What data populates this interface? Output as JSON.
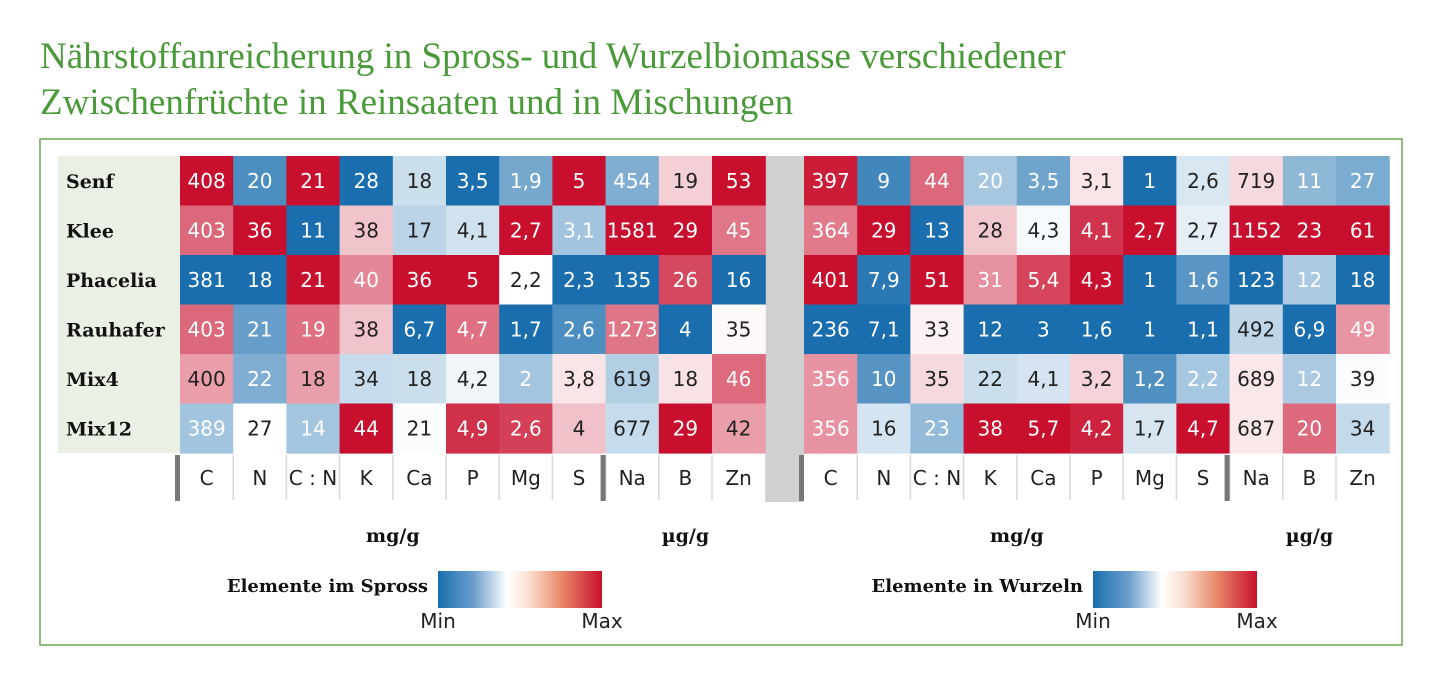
{
  "chart_data": {
    "type": "heatmap",
    "title": "Nährstoffanreicherung in Spross- und Wurzelbiomasse verschiedener Zwischenfrüchte in Reinsaaten und in Mischungen",
    "title_lines": [
      "Nährstoffanreicherung in Spross- und Wurzelbiomasse verschiedener",
      "Zwischenfrüchte in Reinsaaten und in Mischungen"
    ],
    "rows": [
      "Senf",
      "Klee",
      "Phacelia",
      "Rauhafer",
      "Mix4",
      "Mix12"
    ],
    "columns": [
      "C",
      "N",
      "C : N",
      "K",
      "Ca",
      "P",
      "Mg",
      "S",
      "Na",
      "B",
      "Zn"
    ],
    "unit_labels": {
      "mg": "mg/g",
      "ug": "µg/g"
    },
    "colors": {
      "min": "#1a6eae",
      "mid": "#ffffff",
      "max": "#c8102e",
      "frame": "#6aa84f",
      "title": "#4a9a3a",
      "row_label_bg": "#eaf1e4",
      "separator": "#d0d0d0"
    },
    "panels": [
      {
        "name": "Elemente im Spross",
        "legend_title": "Elemente im Spross",
        "values": [
          [
            "408",
            "20",
            "21",
            "28",
            "18",
            "3,5",
            "1,9",
            "5",
            "454",
            "19",
            "53"
          ],
          [
            "403",
            "36",
            "11",
            "38",
            "17",
            "4,1",
            "2,7",
            "3,1",
            "1581",
            "29",
            "45"
          ],
          [
            "381",
            "18",
            "21",
            "40",
            "36",
            "5",
            "2,2",
            "2,3",
            "135",
            "26",
            "16"
          ],
          [
            "403",
            "21",
            "19",
            "38",
            "6,7",
            "4,7",
            "1,7",
            "2,6",
            "1273",
            "4",
            "35"
          ],
          [
            "400",
            "22",
            "18",
            "34",
            "18",
            "4,2",
            "2",
            "3,8",
            "619",
            "18",
            "46"
          ],
          [
            "389",
            "27",
            "14",
            "44",
            "21",
            "4,9",
            "2,6",
            "4",
            "677",
            "29",
            "42"
          ]
        ]
      },
      {
        "name": "Elemente in Wurzeln",
        "legend_title": "Elemente in Wurzeln",
        "values": [
          [
            "397",
            "9",
            "44",
            "20",
            "3,5",
            "3,1",
            "1",
            "2,6",
            "719",
            "11",
            "27"
          ],
          [
            "364",
            "29",
            "13",
            "28",
            "4,3",
            "4,1",
            "2,7",
            "2,7",
            "1152",
            "23",
            "61"
          ],
          [
            "401",
            "7,9",
            "51",
            "31",
            "5,4",
            "4,3",
            "1",
            "1,6",
            "123",
            "12",
            "18"
          ],
          [
            "236",
            "7,1",
            "33",
            "12",
            "3",
            "1,6",
            "1",
            "1,1",
            "492",
            "6,9",
            "49"
          ],
          [
            "356",
            "10",
            "35",
            "22",
            "4,1",
            "3,2",
            "1,2",
            "2,2",
            "689",
            "12",
            "39"
          ],
          [
            "356",
            "16",
            "23",
            "38",
            "5,7",
            "4,2",
            "1,7",
            "4,7",
            "687",
            "20",
            "34"
          ]
        ]
      }
    ],
    "legend": {
      "min_label": "Min",
      "max_label": "Max"
    }
  }
}
